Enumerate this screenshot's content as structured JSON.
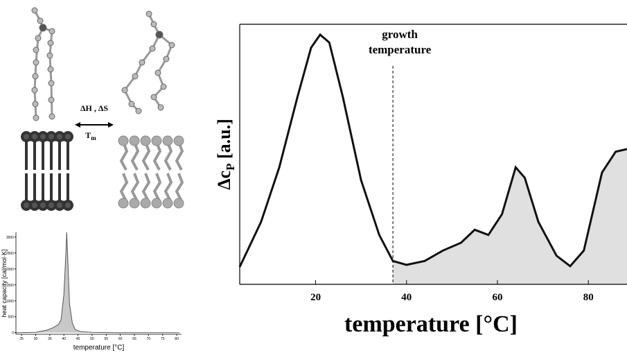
{
  "illustration": {
    "energy": "ΔH , ΔS",
    "tm": "T",
    "tm_sub": "m"
  },
  "chart_data": [
    {
      "type": "line",
      "x_label": "temperature [°C]",
      "y_label": "heat capacity [cal/mol·K]",
      "x": [
        23,
        30,
        34,
        36,
        38,
        39,
        40,
        40.7,
        41,
        41.3,
        42,
        43,
        44,
        46,
        50,
        60,
        70,
        81
      ],
      "values": [
        0,
        10,
        80,
        150,
        250,
        400,
        1200,
        2500,
        3150,
        2500,
        900,
        300,
        100,
        30,
        10,
        0,
        0,
        0
      ],
      "xlim": [
        23,
        81.7
      ],
      "ylim": [
        -50,
        3150
      ],
      "xticks": [
        25,
        30,
        35,
        40,
        45,
        50,
        55,
        60,
        65,
        70,
        75,
        80
      ],
      "yticks": [
        0,
        500,
        1000,
        1500,
        2000,
        2500,
        3000
      ],
      "color": "#555555",
      "fill": "#c8c8c8"
    },
    {
      "type": "line",
      "x_label": "temperature [°C]",
      "y_label": [
        "Δc",
        "P",
        " [a.u.]"
      ],
      "x": [
        3.3,
        8,
        12,
        16,
        19,
        21,
        23,
        26,
        30,
        34,
        37,
        40,
        44,
        48,
        52,
        55,
        58,
        61,
        64,
        66,
        69,
        73,
        76,
        79,
        83,
        86,
        88.5
      ],
      "values": [
        6.7,
        24,
        45,
        72,
        91,
        96,
        93,
        72,
        40,
        19,
        9,
        7.5,
        9,
        13,
        16,
        21,
        19,
        27,
        45,
        41,
        24,
        11,
        7,
        13,
        43,
        51,
        52
      ],
      "xlim": [
        3.3,
        88.5
      ],
      "ylim": [
        0,
        100
      ],
      "xticks": [
        20,
        40,
        60,
        80
      ],
      "annotation": [
        "growth",
        "temperature"
      ],
      "vline": 37,
      "color": "#111111",
      "fill": "#e0e0e0"
    }
  ]
}
